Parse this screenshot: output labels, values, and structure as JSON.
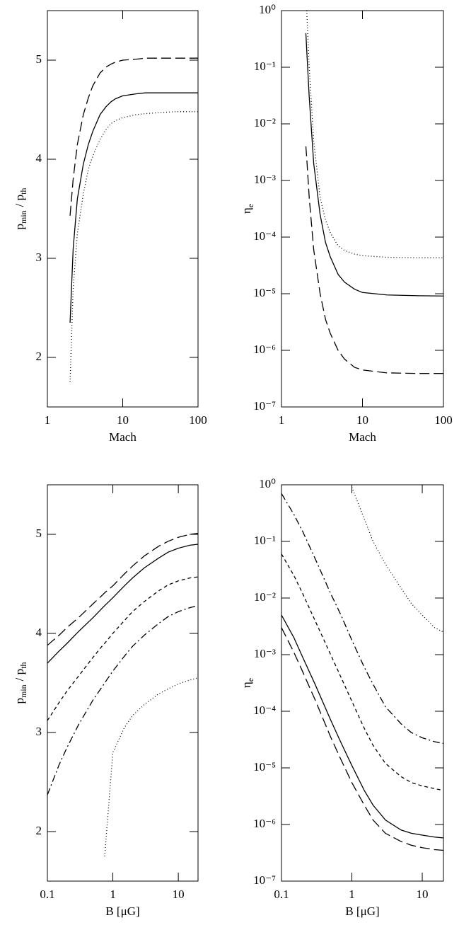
{
  "chart_data": [
    {
      "type": "line",
      "xlabel": "Mach",
      "ylabel": [
        "p",
        "min",
        "/ p",
        "th"
      ],
      "xscale": "log",
      "yscale": "linear",
      "xlim": [
        1,
        100
      ],
      "ylim": [
        1.5,
        5.5
      ],
      "xticks": [
        1,
        10,
        100
      ],
      "yticks": [
        2,
        3,
        4,
        5
      ],
      "x": [
        2,
        2.2,
        2.5,
        3,
        3.5,
        4,
        5,
        6,
        7,
        8,
        10,
        15,
        20,
        30,
        50,
        70,
        100
      ],
      "series": [
        {
          "color": "#000000",
          "linestyle": "longdash",
          "values": [
            3.43,
            3.8,
            4.15,
            4.45,
            4.62,
            4.74,
            4.87,
            4.93,
            4.96,
            4.98,
            5.0,
            5.01,
            5.02,
            5.02,
            5.02,
            5.02,
            5.02
          ]
        },
        {
          "color": "#000000",
          "linestyle": "solid",
          "values": [
            2.35,
            3.1,
            3.6,
            3.95,
            4.15,
            4.28,
            4.45,
            4.53,
            4.58,
            4.61,
            4.64,
            4.66,
            4.67,
            4.67,
            4.67,
            4.67,
            4.67
          ]
        },
        {
          "color": "#000000",
          "linestyle": "dotted",
          "values": [
            1.75,
            2.7,
            3.25,
            3.65,
            3.9,
            4.03,
            4.2,
            4.3,
            4.36,
            4.39,
            4.42,
            4.45,
            4.46,
            4.47,
            4.48,
            4.48,
            4.48
          ]
        }
      ]
    },
    {
      "type": "line",
      "xlabel": "Mach",
      "ylabel": [
        "η",
        "e"
      ],
      "xscale": "log",
      "yscale": "log",
      "xlim": [
        1,
        100
      ],
      "ylim": [
        1e-07,
        1
      ],
      "xticks": [
        1,
        10,
        100
      ],
      "yticks": [
        {
          "value": 1e-07,
          "label": "10⁻⁷"
        },
        {
          "value": 1e-06,
          "label": "10⁻⁶"
        },
        {
          "value": 1e-05,
          "label": "10⁻⁵"
        },
        {
          "value": 0.0001,
          "label": "10⁻⁴"
        },
        {
          "value": 0.001,
          "label": "10⁻³"
        },
        {
          "value": 0.01,
          "label": "10⁻²"
        },
        {
          "value": 0.1,
          "label": "10⁻¹"
        },
        {
          "value": 1,
          "label": "10⁰"
        }
      ],
      "x": [
        2,
        2.05,
        2.2,
        2.5,
        3,
        3.5,
        4,
        5,
        6,
        8,
        10,
        20,
        50,
        100
      ],
      "series": [
        {
          "color": "#000000",
          "linestyle": "dotted",
          "values": [
            null,
            1,
            0.1,
            0.005,
            0.0005,
            0.0002,
            0.00012,
            7e-05,
            5.8e-05,
            5e-05,
            4.7e-05,
            4.4e-05,
            4.3e-05,
            4.3e-05
          ]
        },
        {
          "color": "#000000",
          "linestyle": "solid",
          "values": [
            0.4,
            0.2,
            0.03,
            0.002,
            0.00025,
            8e-05,
            4.5e-05,
            2.2e-05,
            1.6e-05,
            1.2e-05,
            1.05e-05,
            9.5e-06,
            9.2e-06,
            9.1e-06
          ]
        },
        {
          "color": "#000000",
          "linestyle": "longdash",
          "values": [
            0.004,
            0.0025,
            0.0005,
            6e-05,
            1e-05,
            3.5e-06,
            2e-06,
            1e-06,
            7e-07,
            5e-07,
            4.5e-07,
            4e-07,
            3.9e-07,
            3.9e-07
          ]
        }
      ]
    },
    {
      "type": "line",
      "xlabel": "B [μG]",
      "ylabel": [
        "p",
        "min",
        "/ p",
        "th"
      ],
      "xscale": "log",
      "yscale": "linear",
      "xlim": [
        0.1,
        20
      ],
      "ylim": [
        1.5,
        5.5
      ],
      "xticks": [
        0.1,
        1,
        10
      ],
      "yticks": [
        2,
        3,
        4,
        5
      ],
      "x": [
        0.1,
        0.15,
        0.2,
        0.3,
        0.5,
        0.7,
        0.75,
        1,
        1.5,
        2,
        3,
        5,
        7,
        10,
        15,
        20
      ],
      "series": [
        {
          "color": "#000000",
          "linestyle": "longdash",
          "values": [
            3.88,
            3.98,
            4.06,
            4.16,
            4.3,
            4.39,
            4.41,
            4.48,
            4.6,
            4.68,
            4.78,
            4.88,
            4.93,
            4.97,
            5.0,
            5.01
          ]
        },
        {
          "color": "#000000",
          "linestyle": "solid",
          "values": [
            3.7,
            3.82,
            3.9,
            4.02,
            4.16,
            4.26,
            4.28,
            4.36,
            4.48,
            4.56,
            4.66,
            4.76,
            4.82,
            4.86,
            4.89,
            4.9
          ]
        },
        {
          "color": "#000000",
          "linestyle": "shortdash",
          "values": [
            3.12,
            3.3,
            3.42,
            3.57,
            3.76,
            3.88,
            3.9,
            4.0,
            4.13,
            4.22,
            4.32,
            4.43,
            4.49,
            4.53,
            4.56,
            4.57
          ]
        },
        {
          "color": "#000000",
          "linestyle": "dashdot",
          "values": [
            2.37,
            2.67,
            2.85,
            3.08,
            3.33,
            3.47,
            3.5,
            3.62,
            3.77,
            3.87,
            3.98,
            4.1,
            4.17,
            4.22,
            4.26,
            4.28
          ]
        },
        {
          "color": "#000000",
          "linestyle": "dotted",
          "values": [
            null,
            null,
            null,
            null,
            null,
            null,
            1.75,
            2.8,
            3.05,
            3.17,
            3.28,
            3.39,
            3.44,
            3.49,
            3.53,
            3.55
          ]
        }
      ]
    },
    {
      "type": "line",
      "xlabel": "B [μG]",
      "ylabel": [
        "η",
        "e"
      ],
      "xscale": "log",
      "yscale": "log",
      "xlim": [
        0.1,
        20
      ],
      "ylim": [
        1e-07,
        1
      ],
      "xticks": [
        0.1,
        1,
        10
      ],
      "yticks": [
        {
          "value": 1e-07,
          "label": "10⁻⁷"
        },
        {
          "value": 1e-06,
          "label": "10⁻⁶"
        },
        {
          "value": 1e-05,
          "label": "10⁻⁵"
        },
        {
          "value": 0.0001,
          "label": "10⁻⁴"
        },
        {
          "value": 0.001,
          "label": "10⁻³"
        },
        {
          "value": 0.01,
          "label": "10⁻²"
        },
        {
          "value": 0.1,
          "label": "10⁻¹"
        },
        {
          "value": 1,
          "label": "10⁰"
        }
      ],
      "x": [
        0.1,
        0.15,
        0.2,
        0.3,
        0.5,
        0.7,
        1,
        1.5,
        2,
        3,
        5,
        7,
        10,
        15,
        20
      ],
      "series": [
        {
          "color": "#000000",
          "linestyle": "dotted",
          "values": [
            null,
            null,
            null,
            null,
            null,
            null,
            0.9,
            0.25,
            0.1,
            0.04,
            0.015,
            0.008,
            0.005,
            0.003,
            0.0025
          ]
        },
        {
          "color": "#000000",
          "linestyle": "dashdot",
          "values": [
            0.7,
            0.3,
            0.15,
            0.05,
            0.012,
            0.005,
            0.0018,
            0.0006,
            0.0003,
            0.00012,
            6e-05,
            4.2e-05,
            3.4e-05,
            2.9e-05,
            2.7e-05
          ]
        },
        {
          "color": "#000000",
          "linestyle": "shortdash",
          "values": [
            0.06,
            0.025,
            0.012,
            0.004,
            0.001,
            0.0004,
            0.00015,
            5e-05,
            2.5e-05,
            1.2e-05,
            7e-06,
            5.5e-06,
            4.8e-06,
            4.3e-06,
            4e-06
          ]
        },
        {
          "color": "#000000",
          "linestyle": "solid",
          "values": [
            0.005,
            0.002,
            0.0009,
            0.0003,
            7e-05,
            2.8e-05,
            1.1e-05,
            4e-06,
            2.2e-06,
            1.2e-06,
            8e-07,
            7e-07,
            6.5e-07,
            6e-07,
            5.8e-07
          ]
        },
        {
          "color": "#000000",
          "linestyle": "longdash",
          "values": [
            0.003,
            0.0011,
            0.0005,
            0.00016,
            3.5e-05,
            1.4e-05,
            5.5e-06,
            2.2e-06,
            1.2e-06,
            7e-07,
            5e-07,
            4.3e-07,
            3.9e-07,
            3.6e-07,
            3.5e-07
          ]
        }
      ]
    }
  ]
}
